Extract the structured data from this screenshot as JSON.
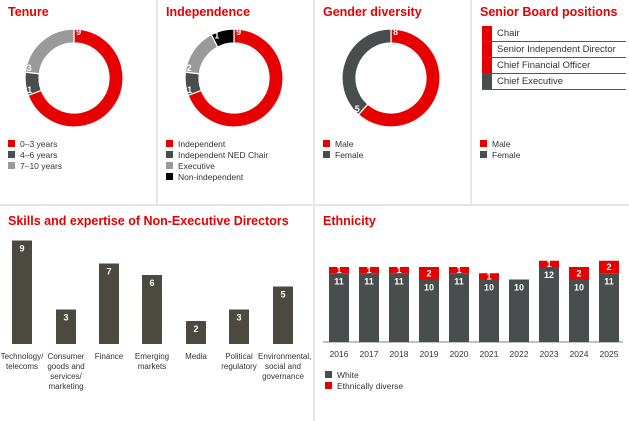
{
  "colors": {
    "red": "#e60000",
    "dark": "#4a4d4e",
    "grey": "#9a9a9a",
    "black": "#000000",
    "olive": "#4c4940",
    "white": "#ffffff"
  },
  "tenure": {
    "title": "Tenure",
    "chart_data": {
      "type": "pie",
      "title": "Tenure",
      "labels": [
        "0–3 years",
        "4–6 years",
        "7–10 years"
      ],
      "values": [
        9,
        1,
        3
      ],
      "colors": [
        "#e60000",
        "#4a4d4e",
        "#9a9a9a"
      ]
    },
    "legend": [
      "0–3 years",
      "4–6 years",
      "7–10 years"
    ]
  },
  "independence": {
    "title": "Independence",
    "chart_data": {
      "type": "pie",
      "title": "Independence",
      "labels": [
        "Independent",
        "Independent NED Chair",
        "Executive",
        "Non-independent"
      ],
      "values": [
        9,
        1,
        2,
        1
      ],
      "colors": [
        "#e60000",
        "#4a4d4e",
        "#9a9a9a",
        "#000000"
      ]
    },
    "legend": [
      "Independent",
      "Independent NED Chair",
      "Executive",
      "Non-independent"
    ]
  },
  "gender": {
    "title": "Gender diversity",
    "chart_data": {
      "type": "pie",
      "title": "Gender diversity",
      "labels": [
        "Male",
        "Female"
      ],
      "values": [
        8,
        5
      ],
      "colors": [
        "#e60000",
        "#4a4d4e"
      ]
    },
    "legend": [
      "Male",
      "Female"
    ]
  },
  "senior": {
    "title": "Senior Board positions",
    "roles": [
      {
        "label": "Chair",
        "gender": "Male"
      },
      {
        "label": "Senior Independent Director",
        "gender": "Male"
      },
      {
        "label": "Chief Financial Officer",
        "gender": "Male"
      },
      {
        "label": "Chief Executive",
        "gender": "Female"
      }
    ],
    "legend": [
      "Male",
      "Female"
    ]
  },
  "skills": {
    "title": "Skills and expertise of Non-Executive Directors",
    "chart_data": {
      "type": "bar",
      "title": "Skills and expertise of Non-Executive Directors",
      "categories": [
        "Technology/ telecoms",
        "Consumer goods and services/ marketing",
        "Finance",
        "Emerging markets",
        "Media",
        "Political regulatory",
        "Environmental, social and governance"
      ],
      "values": [
        9,
        3,
        7,
        6,
        2,
        3,
        5
      ],
      "ylim": [
        0,
        9
      ]
    }
  },
  "ethnicity": {
    "title": "Ethnicity",
    "chart_data": {
      "type": "bar",
      "stacked": true,
      "title": "Ethnicity",
      "categories": [
        "2016",
        "2017",
        "2018",
        "2019",
        "2020",
        "2021",
        "2022",
        "2023",
        "2024",
        "2025"
      ],
      "series": [
        {
          "name": "White",
          "values": [
            11,
            11,
            11,
            10,
            11,
            10,
            10,
            12,
            10,
            11
          ]
        },
        {
          "name": "Ethnically diverse",
          "values": [
            1,
            1,
            1,
            2,
            1,
            1,
            0,
            1,
            2,
            2
          ]
        }
      ],
      "ylim": [
        0,
        13
      ]
    },
    "legend": [
      "White",
      "Ethnically diverse"
    ]
  }
}
